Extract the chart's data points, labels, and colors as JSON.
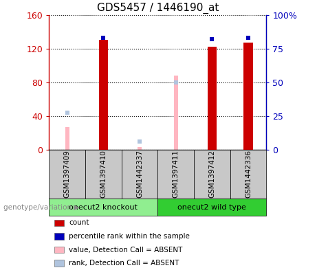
{
  "title": "GDS5457 / 1446190_at",
  "samples": [
    "GSM1397409",
    "GSM1397410",
    "GSM1442337",
    "GSM1397411",
    "GSM1397412",
    "GSM1442336"
  ],
  "groups": [
    {
      "label": "onecut2 knockout",
      "color": "#90EE90",
      "indices": [
        0,
        1,
        2
      ]
    },
    {
      "label": "onecut2 wild type",
      "color": "#32CD32",
      "indices": [
        3,
        4,
        5
      ]
    }
  ],
  "count_values": [
    null,
    130,
    null,
    null,
    122,
    127
  ],
  "count_color": "#CC0000",
  "percentile_rank_values": [
    null,
    83,
    null,
    null,
    82,
    83
  ],
  "percentile_rank_color": "#0000BB",
  "absent_value_values": [
    27,
    null,
    3,
    88,
    null,
    null
  ],
  "absent_value_color": "#FFB6C1",
  "absent_rank_values": [
    44,
    null,
    10,
    80,
    null,
    null
  ],
  "absent_rank_color": "#B0C4DE",
  "ylim_left": [
    0,
    160
  ],
  "ylim_right": [
    0,
    100
  ],
  "yticks_left": [
    0,
    40,
    80,
    120,
    160
  ],
  "ytick_labels_left": [
    "0",
    "40",
    "80",
    "120",
    "160"
  ],
  "yticks_right": [
    0,
    25,
    50,
    75,
    100
  ],
  "ytick_labels_right": [
    "0",
    "25",
    "50",
    "75",
    "100%"
  ],
  "bar_width": 0.25,
  "absent_bar_width": 0.12,
  "marker_size": 5,
  "grid_color": "#000000",
  "background_color": "#FFFFFF",
  "group_label": "genotype/variation",
  "legend_items": [
    {
      "label": "count",
      "color": "#CC0000"
    },
    {
      "label": "percentile rank within the sample",
      "color": "#0000BB"
    },
    {
      "label": "value, Detection Call = ABSENT",
      "color": "#FFB6C1"
    },
    {
      "label": "rank, Detection Call = ABSENT",
      "color": "#B0C4DE"
    }
  ]
}
